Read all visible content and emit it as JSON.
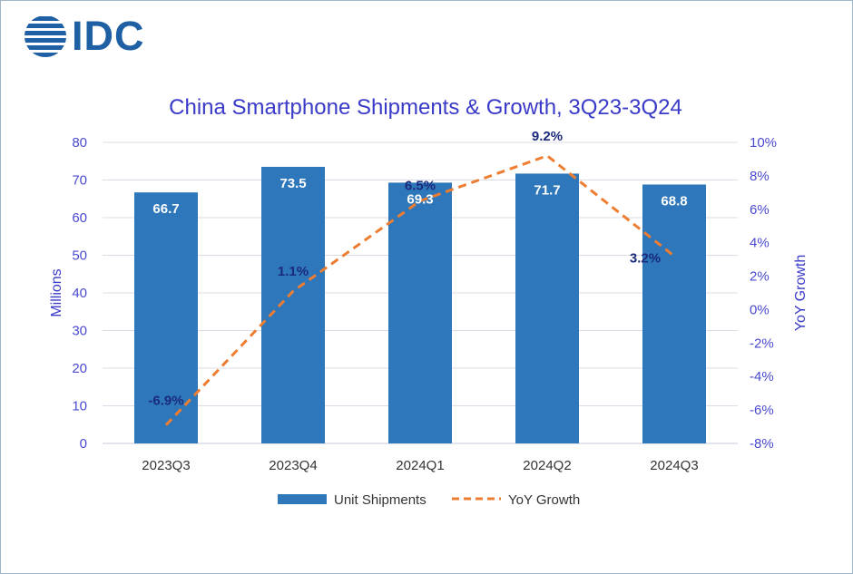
{
  "logo": {
    "text": "IDC"
  },
  "chart_data": {
    "type": "bar+line",
    "title": "China Smartphone Shipments & Growth, 3Q23-3Q24",
    "categories": [
      "2023Q3",
      "2023Q4",
      "2024Q1",
      "2024Q2",
      "2024Q3"
    ],
    "series": [
      {
        "name": "Unit Shipments",
        "type": "bar",
        "axis": "left",
        "values": [
          66.7,
          73.5,
          69.3,
          71.7,
          68.8
        ],
        "labels": [
          "66.7",
          "73.5",
          "69.3",
          "71.7",
          "68.8"
        ],
        "color": "#2e77bb"
      },
      {
        "name": "YoY Growth",
        "type": "line",
        "axis": "right",
        "style": "dashed",
        "values": [
          -6.9,
          1.1,
          6.5,
          9.2,
          3.2
        ],
        "labels": [
          "-6.9%",
          "1.1%",
          "6.5%",
          "9.2%",
          "3.2%"
        ],
        "color": "#ed7d31"
      }
    ],
    "ylabel": "Millions",
    "ylim": [
      0,
      80
    ],
    "yticks": [
      "0",
      "10",
      "20",
      "30",
      "40",
      "50",
      "60",
      "70",
      "80"
    ],
    "y2label": "YoY Growth",
    "y2lim": [
      -8,
      10
    ],
    "y2ticks": [
      "-8%",
      "-6%",
      "-4%",
      "-2%",
      "0%",
      "2%",
      "4%",
      "6%",
      "8%",
      "10%"
    ],
    "grid": true,
    "legend": "bottom"
  }
}
